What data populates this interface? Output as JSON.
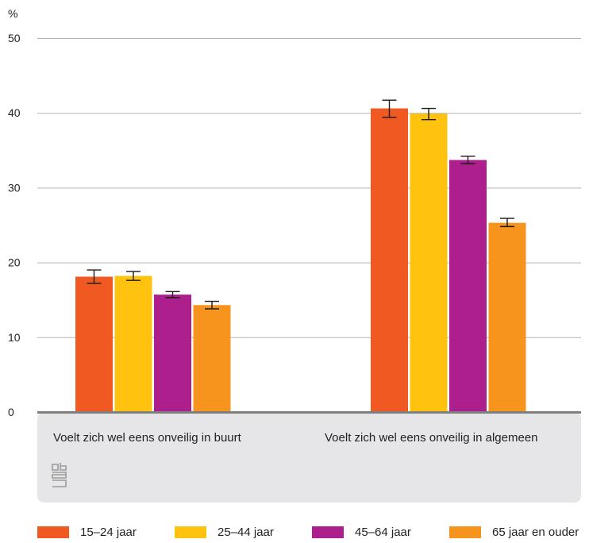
{
  "chart_data": {
    "type": "bar",
    "ylabel": "%",
    "ylim": [
      0,
      50
    ],
    "yticks": [
      "0",
      "10",
      "20",
      "30",
      "40",
      "50"
    ],
    "grid": true,
    "legend_position": "bottom",
    "categories": [
      "Voelt zich wel eens onveilig in buurt",
      "Voelt zich wel eens onveilig in algemeen"
    ],
    "series": [
      {
        "name": "15–24 jaar",
        "color": "#f05a22",
        "values": [
          18.1,
          40.6
        ],
        "error_low": [
          17.2,
          39.4
        ],
        "error_high": [
          19.0,
          41.7
        ]
      },
      {
        "name": "25–44 jaar",
        "color": "#ffc20e",
        "values": [
          18.2,
          39.9
        ],
        "error_low": [
          17.6,
          39.1
        ],
        "error_high": [
          18.8,
          40.6
        ]
      },
      {
        "name": "45–64 jaar",
        "color": "#ad1f8c",
        "values": [
          15.7,
          33.7
        ],
        "error_low": [
          15.3,
          33.2
        ],
        "error_high": [
          16.1,
          34.2
        ]
      },
      {
        "name": "65 jaar en ouder",
        "color": "#f7941d",
        "values": [
          14.3,
          25.3
        ],
        "error_low": [
          13.8,
          24.8
        ],
        "error_high": [
          14.8,
          25.9
        ]
      }
    ]
  },
  "logo": {
    "icon": "cbs-logo-icon",
    "color": "#9a9a9a"
  },
  "colors": {
    "gridline": "#b3b3b3",
    "axis": "#7f7f7f",
    "panel": "#e6e6e8"
  }
}
